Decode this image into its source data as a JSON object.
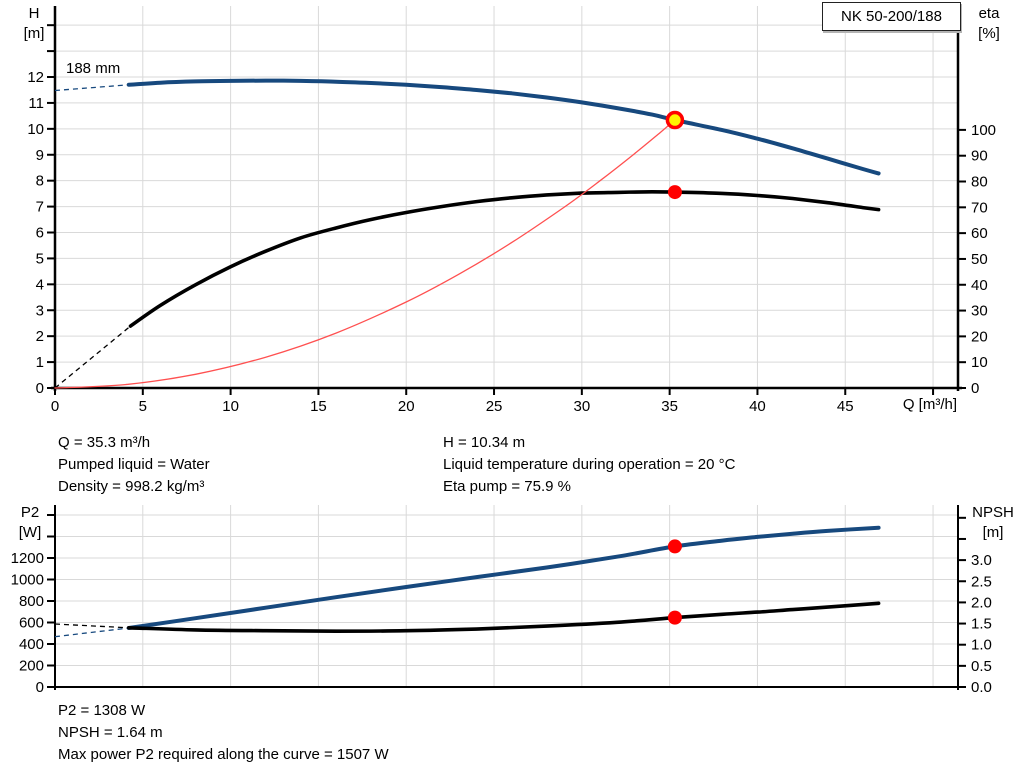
{
  "window": {
    "title_box": "NK 50-200/188"
  },
  "colors": {
    "curve_blue": "#17497E",
    "curve_black": "#000000",
    "system_red": "#FF5050",
    "marker_red": "#FF0000",
    "marker_yellow": "#FFF200",
    "grid": "#D9D9D9",
    "axis": "#000000",
    "background": "#FFFFFF"
  },
  "labels": {
    "impeller": "188 mm",
    "h_axis_line1": "H",
    "h_axis_line2": "[m]",
    "eta_axis_line1": "eta",
    "eta_axis_line2": "[%]",
    "q_axis": "Q [m³/h]",
    "p2_axis_line1": "P2",
    "p2_axis_line2": "[W]",
    "npsh_axis_line1": "NPSH",
    "npsh_axis_line2": "[m]"
  },
  "operating_point_info": {
    "left": [
      "Q = 35.3 m³/h",
      "Pumped liquid = Water",
      "Density = 998.2 kg/m³"
    ],
    "right": [
      "H = 10.34 m",
      "Liquid temperature during operation = 20 °C",
      "Eta pump = 75.9 %"
    ]
  },
  "power_info": [
    "P2 = 1308 W",
    "NPSH = 1.64 m",
    "Max power P2 required along the curve = 1507 W"
  ],
  "chart_data": [
    {
      "type": "line",
      "name": "head-efficiency-chart",
      "title": "NK 50-200/188",
      "x_axis": {
        "label": "Q [m³/h]",
        "min": 0,
        "max": 51.42,
        "tick_values": [
          0,
          5,
          10,
          15,
          20,
          25,
          30,
          35,
          40,
          45,
          50
        ],
        "tick_labels": [
          "0",
          "5",
          "10",
          "15",
          "20",
          "25",
          "30",
          "35",
          "40",
          "45",
          ""
        ],
        "show_tick_marks": true
      },
      "y_left": {
        "label": "H [m]",
        "min": 0,
        "max": 14.74,
        "tick_values": [
          0,
          1,
          2,
          3,
          4,
          5,
          6,
          7,
          8,
          9,
          10,
          11,
          12,
          13,
          14
        ],
        "tick_labels": [
          "0",
          "1",
          "2",
          "3",
          "4",
          "5",
          "6",
          "7",
          "8",
          "9",
          "10",
          "11",
          "12",
          "",
          ""
        ]
      },
      "y_right": {
        "label": "eta [%]",
        "min": 0,
        "max": 148.0,
        "tick_values": [
          0,
          10,
          20,
          30,
          40,
          50,
          60,
          70,
          80,
          90,
          100
        ],
        "tick_labels": [
          "0",
          "10",
          "20",
          "30",
          "40",
          "50",
          "60",
          "70",
          "80",
          "90",
          "100"
        ]
      },
      "grid_x": [
        5,
        10,
        15,
        20,
        25,
        30,
        35,
        40,
        45,
        50
      ],
      "grid_y_left": [
        1,
        2,
        3,
        4,
        5,
        6,
        7,
        8,
        9,
        10,
        11,
        12,
        13,
        14
      ],
      "series": [
        {
          "name": "head-curve-188mm",
          "label": "188 mm",
          "axis": "left",
          "color": "#17497E",
          "width": 4,
          "dash_lead": [
            [
              0,
              11.48
            ],
            [
              4.2,
              11.7
            ]
          ],
          "points": [
            [
              4.2,
              11.7
            ],
            [
              6,
              11.78
            ],
            [
              8,
              11.83
            ],
            [
              10,
              11.85
            ],
            [
              12,
              11.86
            ],
            [
              14,
              11.85
            ],
            [
              16,
              11.82
            ],
            [
              18,
              11.77
            ],
            [
              20,
              11.7
            ],
            [
              22,
              11.61
            ],
            [
              24,
              11.5
            ],
            [
              26,
              11.37
            ],
            [
              28,
              11.21
            ],
            [
              30,
              11.02
            ],
            [
              32,
              10.8
            ],
            [
              34,
              10.55
            ],
            [
              35.3,
              10.34
            ],
            [
              38,
              9.95
            ],
            [
              40,
              9.62
            ],
            [
              42,
              9.25
            ],
            [
              44,
              8.85
            ],
            [
              46,
              8.45
            ],
            [
              46.9,
              8.28
            ]
          ]
        },
        {
          "name": "efficiency-curve",
          "label": "eta",
          "axis": "right",
          "color": "#000000",
          "width": 3.6,
          "dash_lead": [
            [
              0,
              0
            ],
            [
              4.3,
              24
            ]
          ],
          "points": [
            [
              4.3,
              24
            ],
            [
              6,
              32
            ],
            [
              8,
              40
            ],
            [
              10,
              47
            ],
            [
              12,
              53
            ],
            [
              14,
              58.2
            ],
            [
              16,
              62
            ],
            [
              18,
              65.3
            ],
            [
              20,
              68
            ],
            [
              22,
              70.3
            ],
            [
              24,
              72.2
            ],
            [
              26,
              73.7
            ],
            [
              28,
              74.8
            ],
            [
              30,
              75.5
            ],
            [
              32,
              75.8
            ],
            [
              34,
              76.0
            ],
            [
              35.3,
              75.9
            ],
            [
              38,
              75.4
            ],
            [
              40,
              74.6
            ],
            [
              42,
              73.4
            ],
            [
              44,
              71.8
            ],
            [
              46,
              69.9
            ],
            [
              46.9,
              69.1
            ]
          ]
        },
        {
          "name": "system-curve",
          "label": "system",
          "axis": "left",
          "color": "#FF5050",
          "width": 1.3,
          "points": [
            [
              0,
              0
            ],
            [
              4,
              0.13
            ],
            [
              8,
              0.53
            ],
            [
              12,
              1.19
            ],
            [
              16,
              2.12
            ],
            [
              20,
              3.32
            ],
            [
              23,
              4.39
            ],
            [
              26,
              5.61
            ],
            [
              29,
              6.98
            ],
            [
              31,
              7.98
            ],
            [
              33,
              9.04
            ],
            [
              34.5,
              9.88
            ],
            [
              35.3,
              10.34
            ]
          ]
        }
      ],
      "markers": [
        {
          "name": "duty-point-head",
          "x": 35.3,
          "y": 10.34,
          "axis": "left",
          "style": "yellow-red"
        },
        {
          "name": "duty-point-eta",
          "x": 35.3,
          "y": 75.9,
          "axis": "right",
          "style": "red"
        }
      ]
    },
    {
      "type": "line",
      "name": "power-npsh-chart",
      "x_axis": {
        "label": "",
        "min": 0,
        "max": 51.42,
        "tick_values": [],
        "tick_labels": [],
        "show_tick_marks": false
      },
      "y_left": {
        "label": "P2 [W]",
        "min": 0,
        "max": 1693,
        "tick_values": [
          0,
          200,
          400,
          600,
          800,
          1000,
          1200,
          1400,
          1600
        ],
        "tick_labels": [
          "0",
          "200",
          "400",
          "600",
          "800",
          "1000",
          "1200",
          "",
          ""
        ]
      },
      "y_right": {
        "label": "NPSH [m]",
        "min": 0,
        "max": 4.303,
        "tick_values": [
          0,
          0.5,
          1.0,
          1.5,
          2.0,
          2.5,
          3.0,
          3.5,
          4.0
        ],
        "tick_labels": [
          "0.0",
          "0.5",
          "1.0",
          "1.5",
          "2.0",
          "2.5",
          "3.0",
          "",
          ""
        ]
      },
      "grid_x": [
        5,
        10,
        15,
        20,
        25,
        30,
        35,
        40,
        45,
        50
      ],
      "grid_y_left": [
        200,
        400,
        600,
        800,
        1000,
        1200,
        1400,
        1600
      ],
      "series": [
        {
          "name": "p2-power-curve",
          "label": "P2",
          "axis": "left",
          "color": "#17497E",
          "width": 4,
          "dash_lead": [
            [
              0,
              468
            ],
            [
              4.2,
              549
            ]
          ],
          "points": [
            [
              4.2,
              549
            ],
            [
              8,
              640
            ],
            [
              12,
              738
            ],
            [
              16,
              835
            ],
            [
              20,
              930
            ],
            [
              24,
              1022
            ],
            [
              28,
              1112
            ],
            [
              32,
              1212
            ],
            [
              35.3,
              1308
            ],
            [
              38,
              1362
            ],
            [
              40,
              1396
            ],
            [
              42,
              1426
            ],
            [
              44,
              1452
            ],
            [
              46.9,
              1482
            ]
          ]
        },
        {
          "name": "npsh-curve",
          "label": "NPSH",
          "axis": "right",
          "color": "#000000",
          "width": 3.6,
          "dash_lead": [
            [
              0,
              1.49
            ],
            [
              4.2,
              1.4
            ]
          ],
          "points": [
            [
              4.2,
              1.4
            ],
            [
              8,
              1.35
            ],
            [
              12,
              1.33
            ],
            [
              16,
              1.32
            ],
            [
              20,
              1.33
            ],
            [
              24,
              1.37
            ],
            [
              28,
              1.44
            ],
            [
              32,
              1.53
            ],
            [
              35.3,
              1.64
            ],
            [
              38,
              1.72
            ],
            [
              40,
              1.77
            ],
            [
              42,
              1.83
            ],
            [
              44,
              1.89
            ],
            [
              46.9,
              1.98
            ]
          ]
        }
      ],
      "markers": [
        {
          "name": "duty-point-p2",
          "x": 35.3,
          "y": 1308,
          "axis": "left",
          "style": "red"
        },
        {
          "name": "duty-point-npsh",
          "x": 35.3,
          "y": 1.64,
          "axis": "right",
          "style": "red"
        }
      ]
    }
  ]
}
